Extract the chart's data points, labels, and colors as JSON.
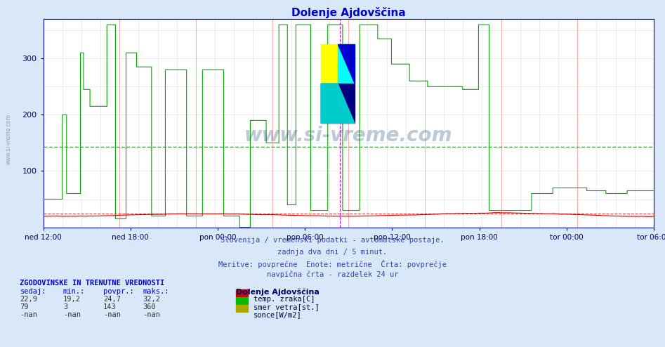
{
  "title": "Dolenje Ajdovščina",
  "title_color": "#0000cc",
  "bg_color": "#d8e8f8",
  "plot_bg_color": "#ffffff",
  "xlabel_labels": [
    "ned 12:00",
    "ned 18:00",
    "pon 00:00",
    "pon 06:00",
    "pon 12:00",
    "pon 18:00",
    "tor 00:00",
    "tor 06:00"
  ],
  "ylim": [
    0,
    370
  ],
  "yticks": [
    100,
    200,
    300
  ],
  "green_hline": 143,
  "red_hline": 24.7,
  "temp_color": "#cc0000",
  "wind_color": "#00aa00",
  "vertical_line_color": "#dd00dd",
  "subtitle_lines": [
    "Slovenija / vremenski podatki - avtomatske postaje.",
    "zadnja dva dni / 5 minut.",
    "Meritve: povprečne  Enote: metrične  Črta: povprečje",
    "navpična črta - razdelek 24 ur"
  ],
  "stats_header": "ZGODOVINSKE IN TRENUTNE VREDNOSTI",
  "stats_cols": [
    "sedaj:",
    "min.:",
    "povpr.:",
    "maks.:"
  ],
  "stats_rows": [
    [
      "22,9",
      "19,2",
      "24,7",
      "32,2"
    ],
    [
      "79",
      "3",
      "143",
      "360"
    ],
    [
      "-nan",
      "-nan",
      "-nan",
      "-nan"
    ]
  ],
  "legend_items": [
    {
      "label": "temp. zraka[C]",
      "color": "#cc0000"
    },
    {
      "label": "smer vetra[st.]",
      "color": "#00bb00"
    },
    {
      "label": "sonce[W/m2]",
      "color": "#aaaa00"
    }
  ],
  "legend_station": "Dolenje Ajdovščina",
  "watermark": "www.si-vreme.com"
}
